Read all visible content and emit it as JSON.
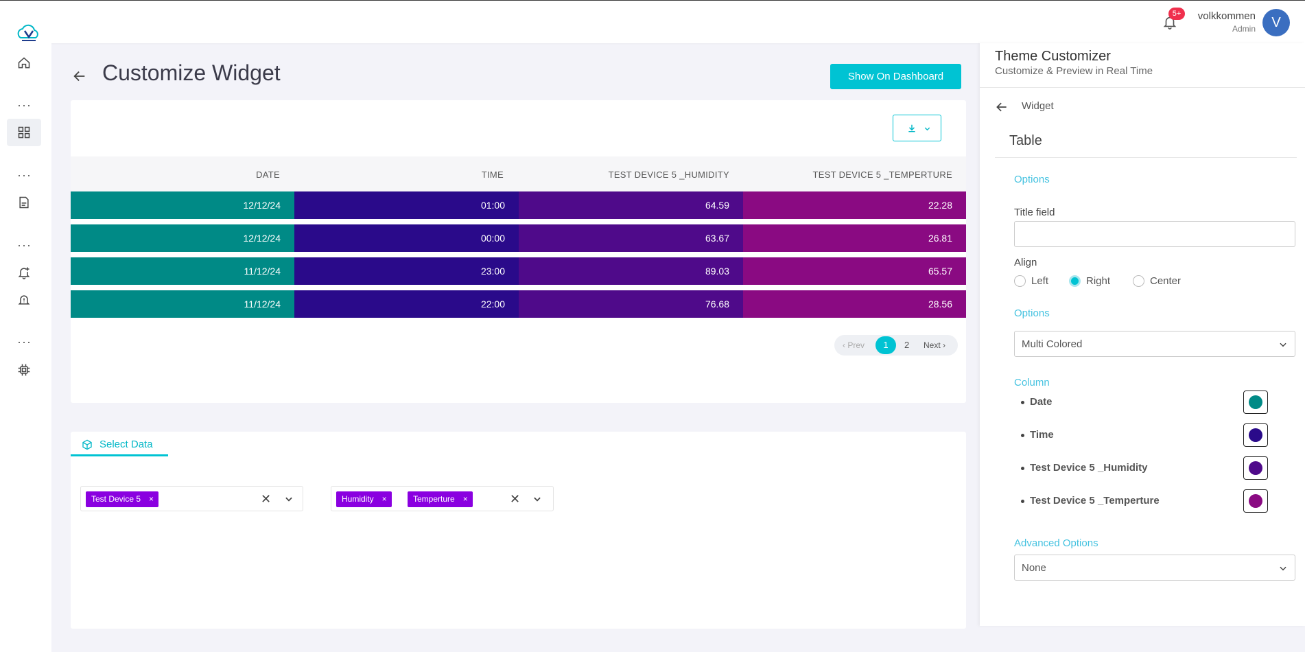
{
  "header": {
    "notification_badge": "5+",
    "user_name": "volkkommen",
    "user_role": "Admin",
    "avatar_letter": "V"
  },
  "sidebar": {
    "icons": [
      "home-icon",
      "more-icon",
      "dashboard-icon",
      "more-icon",
      "document-icon",
      "more-icon",
      "add-alert-icon",
      "alert-icon",
      "more-icon",
      "chip-icon"
    ]
  },
  "page": {
    "title": "Customize Widget",
    "show_on_dashboard_label": "Show On Dashboard"
  },
  "table": {
    "columns": [
      "DATE",
      "TIME",
      "TEST DEVICE 5 _HUMIDITY",
      "TEST DEVICE 5 _TEMPERTURE"
    ],
    "rows": [
      [
        "12/12/24",
        "01:00",
        "64.59",
        "22.28"
      ],
      [
        "12/12/24",
        "00:00",
        "63.67",
        "26.81"
      ],
      [
        "11/12/24",
        "23:00",
        "89.03",
        "65.57"
      ],
      [
        "11/12/24",
        "22:00",
        "76.68",
        "28.56"
      ]
    ],
    "column_colors": [
      "#008a86",
      "#2a0a8a",
      "#4f0a8a",
      "#8a0a82"
    ],
    "pagination": {
      "prev": "Prev",
      "current": "1",
      "page2": "2",
      "next": "Next"
    }
  },
  "select_data": {
    "tab_label": "Select Data",
    "devices": [
      "Test Device 5"
    ],
    "parameters": [
      "Humidity",
      "Temperture"
    ]
  },
  "theme_customizer": {
    "title": "Theme Customizer",
    "subtitle": "Customize & Preview in Real Time",
    "breadcrumb": "Widget",
    "section": "Table",
    "options_label": "Options",
    "title_field_label": "Title field",
    "title_field_value": "",
    "align_label": "Align",
    "align_options": [
      "Left",
      "Right",
      "Center"
    ],
    "align_selected": "Right",
    "options_label_2": "Options",
    "color_mode": "Multi Colored",
    "column_label": "Column",
    "columns": [
      {
        "name": "Date",
        "color": "#008a86"
      },
      {
        "name": "Time",
        "color": "#2a0a8a"
      },
      {
        "name": "Test Device 5 _Humidity",
        "color": "#4f0a8a"
      },
      {
        "name": "Test Device 5 _Temperture",
        "color": "#8a0a82"
      }
    ],
    "advanced_label": "Advanced Options",
    "advanced_value": "None"
  }
}
